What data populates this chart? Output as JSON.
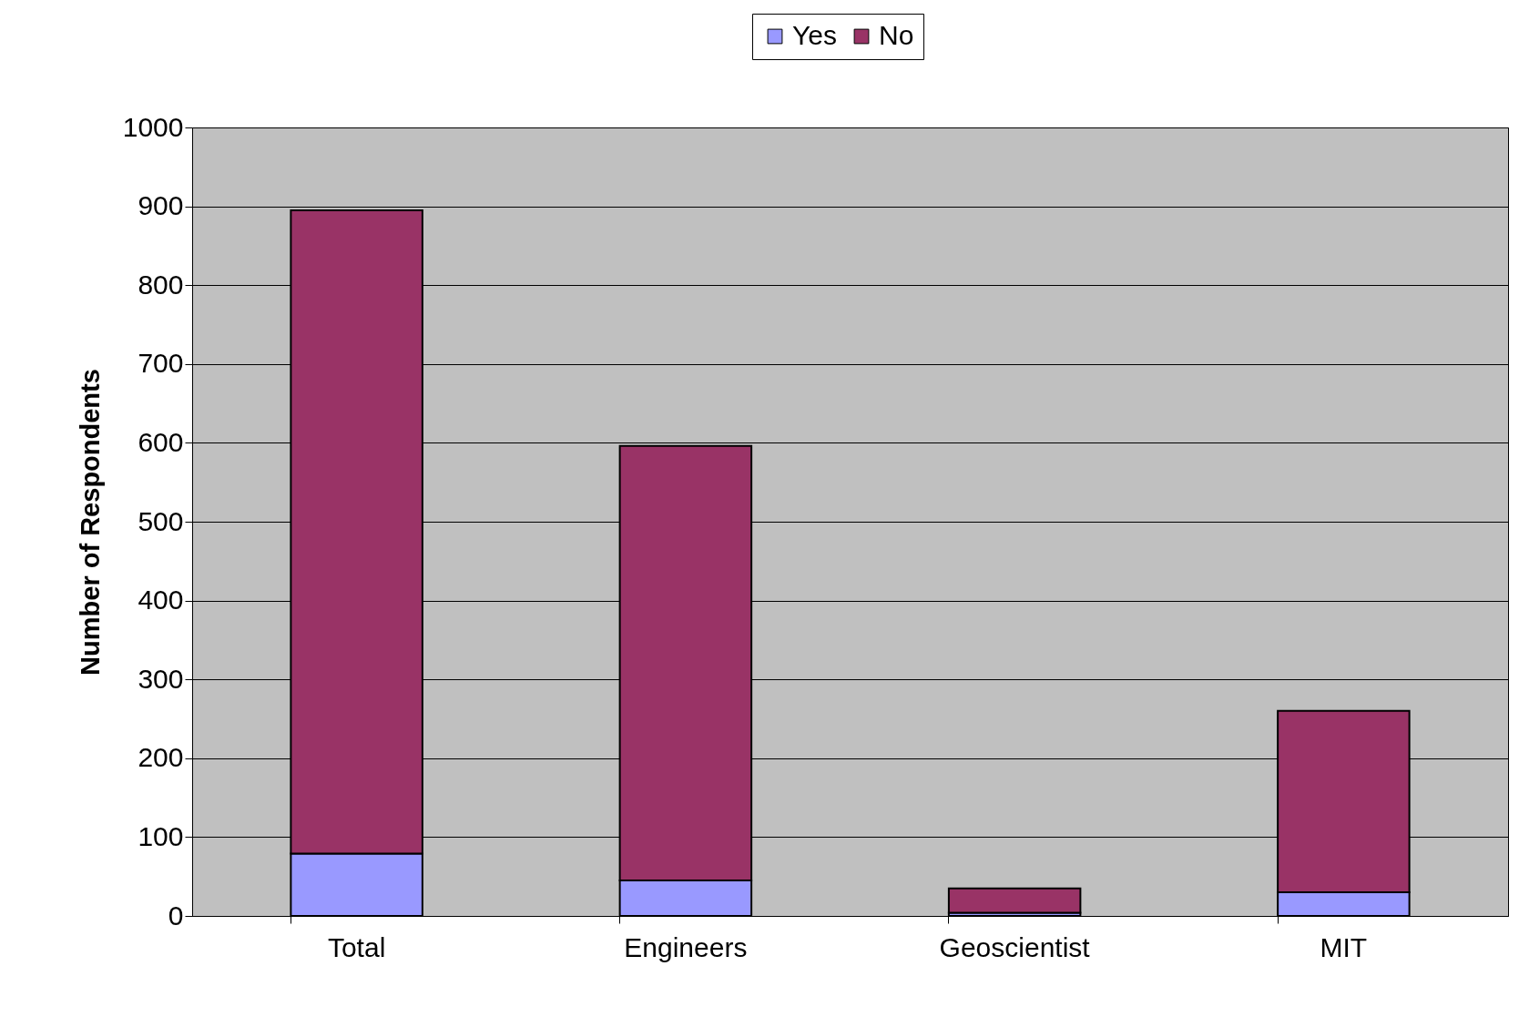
{
  "chart_data": {
    "type": "bar",
    "stacked": true,
    "ylabel": "Number of Respondents",
    "categories": [
      "Total",
      "Engineers",
      "Geoscientist",
      "MIT"
    ],
    "series": [
      {
        "name": "Yes",
        "color": "#9999ff",
        "values": [
          79,
          45,
          4,
          30
        ]
      },
      {
        "name": "No",
        "color": "#993366",
        "values": [
          816,
          551,
          31,
          230
        ]
      }
    ],
    "ylim": [
      0,
      1000
    ],
    "yticks": [
      0,
      100,
      200,
      300,
      400,
      500,
      600,
      700,
      800,
      900,
      1000
    ],
    "grid": "y",
    "legend": "top"
  }
}
